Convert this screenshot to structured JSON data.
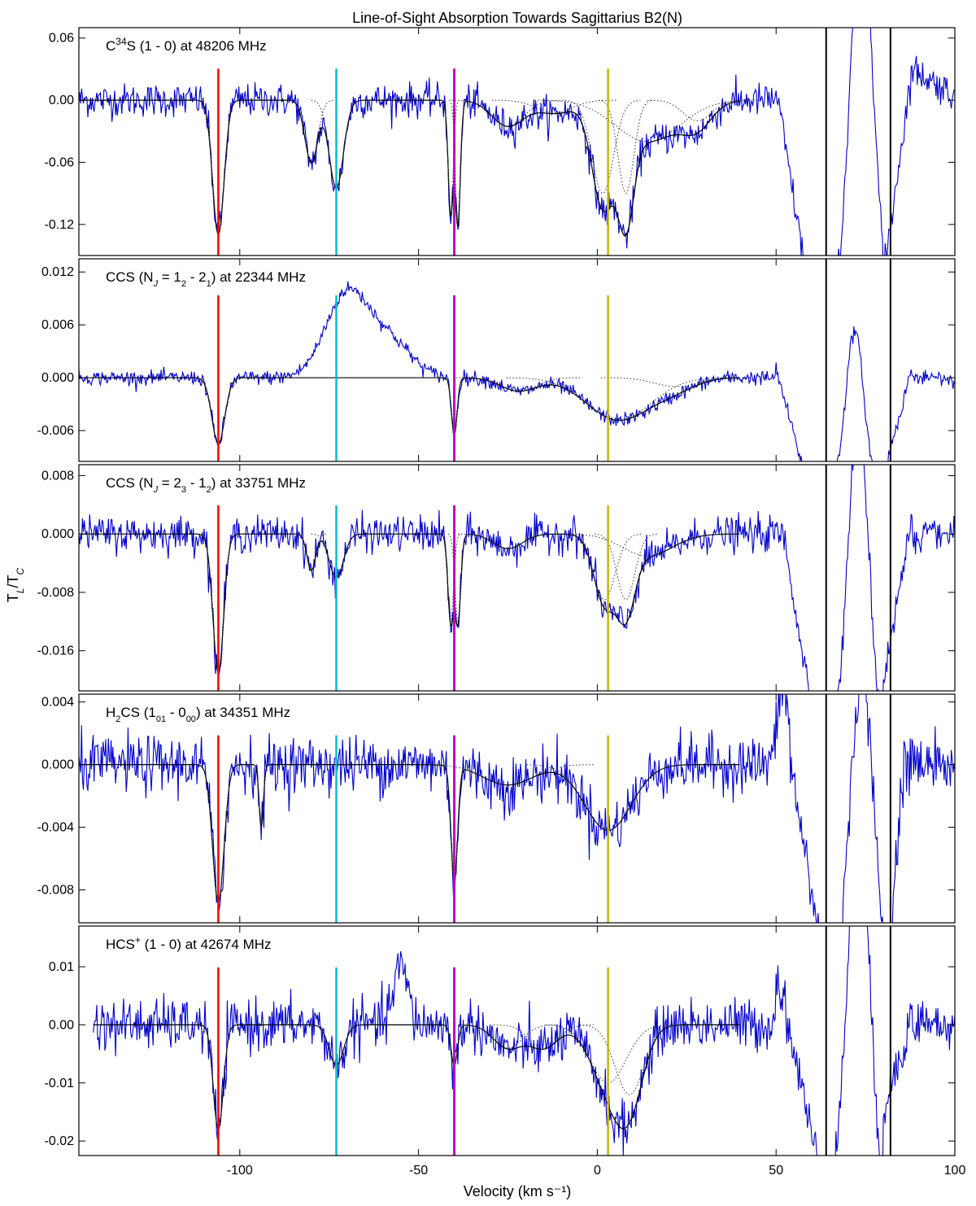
{
  "chart_data": {
    "type": "line",
    "title": "Line-of-Sight Absorption Towards Sagittarius B2(N)",
    "xlabel": "Velocity (km s⁻¹)",
    "ylabel": "T_L/T_C",
    "xlim": [
      -145,
      100
    ],
    "xticks": [
      -100,
      -50,
      0,
      50,
      100
    ],
    "xtick_labels": [
      "-100",
      "-50",
      "0",
      "50",
      "100"
    ],
    "grid": false,
    "markers": [
      {
        "velocity": -106,
        "color": "#ff0000"
      },
      {
        "velocity": -73,
        "color": "#00bfc8"
      },
      {
        "velocity": -40,
        "color": "#bf00bf"
      },
      {
        "velocity": 3,
        "color": "#c8b400"
      },
      {
        "velocity": 64,
        "color": "#000000"
      },
      {
        "velocity": 82,
        "color": "#000000"
      }
    ],
    "panels": [
      {
        "label_main": "C",
        "label_sup": "34",
        "label_rest": "S (1 - 0) at 48206 MHz",
        "ylim": [
          -0.15,
          0.07
        ],
        "yticks": [
          0.06,
          0.0,
          -0.06,
          -0.12
        ],
        "ytick_labels": [
          "0.06",
          "0.00",
          "-0.06",
          "-0.12"
        ],
        "data_start": -145,
        "noise": 0.008,
        "components": [
          {
            "center": -106,
            "depth": 0.13,
            "width": 1.6
          },
          {
            "center": -80,
            "depth": 0.06,
            "width": 1.8
          },
          {
            "center": -73,
            "depth": 0.085,
            "width": 2.0
          },
          {
            "center": -41,
            "depth": 0.11,
            "width": 0.7
          },
          {
            "center": -39,
            "depth": 0.12,
            "width": 0.7
          },
          {
            "center": -25,
            "depth": 0.025,
            "width": 4.5
          },
          {
            "center": -12,
            "depth": 0.012,
            "width": 5.0
          },
          {
            "center": 1.5,
            "depth": 0.09,
            "width": 3.0
          },
          {
            "center": 8,
            "depth": 0.09,
            "width": 2.2
          },
          {
            "center": 14,
            "depth": 0.04,
            "width": 9.0
          },
          {
            "center": 28,
            "depth": 0.02,
            "width": 4.0
          }
        ],
        "emission": [
          {
            "center": 74,
            "height": 0.24,
            "width": 3.0
          }
        ],
        "segments": [
          {
            "x0": 50,
            "y0": 0.01,
            "x1": 58,
            "y1": -0.16
          },
          {
            "x0": 62,
            "y0": -0.18,
            "x1": 68,
            "y1": -0.15
          },
          {
            "x0": 80,
            "y0": -0.17,
            "x1": 88,
            "y1": 0.03
          },
          {
            "x0": 88,
            "y0": 0.03,
            "x1": 100,
            "y1": 0.005
          }
        ]
      },
      {
        "label_main": "CCS (N",
        "label_sub": "J",
        "label_rest": " = 1",
        "label_sub2": "2",
        "label_rest2": " - 2",
        "label_sub3": "1",
        "label_rest3": ") at 22344 MHz",
        "ylim": [
          -0.0095,
          0.0135
        ],
        "yticks": [
          0.012,
          0.006,
          0.0,
          -0.006
        ],
        "ytick_labels": [
          "0.012",
          "0.006",
          "0.000",
          "-0.006"
        ],
        "data_start": -145,
        "noise": 0.0004,
        "components": [
          {
            "center": -106,
            "depth": 0.0075,
            "width": 1.8
          },
          {
            "center": -40,
            "depth": 0.0065,
            "width": 0.8
          },
          {
            "center": -22,
            "depth": 0.0015,
            "width": 5.0
          },
          {
            "center": 6,
            "depth": 0.0048,
            "width": 9.0
          },
          {
            "center": 22,
            "depth": 0.001,
            "width": 6.0
          }
        ],
        "emission": [
          {
            "center": -70,
            "height": 0.0095,
            "width": 6.0
          },
          {
            "center": -58,
            "height": 0.004,
            "width": 6.0
          },
          {
            "center": 72,
            "height": 0.011,
            "width": 2.5
          }
        ],
        "segments": [
          {
            "x0": 50,
            "y0": 0.001,
            "x1": 58,
            "y1": -0.011
          },
          {
            "x0": 80,
            "y0": -0.011,
            "x1": 88,
            "y1": 0.001
          }
        ]
      },
      {
        "label_main": "CCS (N",
        "label_sub": "J",
        "label_rest": " = 2",
        "label_sub2": "3",
        "label_rest2": " - 1",
        "label_sub3": "2",
        "label_rest3": ") at 33751 MHz",
        "ylim": [
          -0.0215,
          0.0095
        ],
        "yticks": [
          0.008,
          0.0,
          -0.008,
          -0.016
        ],
        "ytick_labels": [
          "0.008",
          "0.000",
          "-0.008",
          "-0.016"
        ],
        "data_start": -145,
        "noise": 0.0012,
        "components": [
          {
            "center": -106,
            "depth": 0.019,
            "width": 1.5
          },
          {
            "center": -80,
            "depth": 0.005,
            "width": 1.2
          },
          {
            "center": -73,
            "depth": 0.006,
            "width": 2.0
          },
          {
            "center": -41,
            "depth": 0.012,
            "width": 0.8
          },
          {
            "center": -39,
            "depth": 0.012,
            "width": 0.8
          },
          {
            "center": -25,
            "depth": 0.002,
            "width": 4.0
          },
          {
            "center": 2,
            "depth": 0.009,
            "width": 3.0
          },
          {
            "center": 8,
            "depth": 0.009,
            "width": 2.5
          },
          {
            "center": 14,
            "depth": 0.003,
            "width": 7.0
          }
        ],
        "emission": [
          {
            "center": 73,
            "height": 0.028,
            "width": 2.8
          }
        ],
        "segments": [
          {
            "x0": 52,
            "y0": 0.0,
            "x1": 60,
            "y1": -0.024
          },
          {
            "x0": 80,
            "y0": -0.02,
            "x1": 88,
            "y1": 0.002
          }
        ]
      },
      {
        "label_main": "H",
        "label_sub": "2",
        "label_rest": "CS (1",
        "label_sub2": "01",
        "label_rest2": " - 0",
        "label_sub3": "00",
        "label_rest3": ") at 34351 MHz",
        "ylim": [
          -0.0101,
          0.0045
        ],
        "yticks": [
          0.004,
          0.0,
          -0.004,
          -0.008
        ],
        "ytick_labels": [
          "0.004",
          "0.000",
          "-0.004",
          "-0.008"
        ],
        "data_start": -145,
        "noise": 0.0009,
        "components": [
          {
            "center": -106,
            "depth": 0.0088,
            "width": 1.6
          },
          {
            "center": -94,
            "depth": 0.004,
            "width": 0.6
          },
          {
            "center": -40,
            "depth": 0.0075,
            "width": 0.9
          },
          {
            "center": -25,
            "depth": 0.0013,
            "width": 7.0
          },
          {
            "center": 3,
            "depth": 0.0042,
            "width": 6.5
          }
        ],
        "emission": [
          {
            "center": 52,
            "height": 0.005,
            "width": 1.5
          },
          {
            "center": 74,
            "height": 0.012,
            "width": 3.0
          }
        ],
        "segments": [
          {
            "x0": 54,
            "y0": 0.0,
            "x1": 62,
            "y1": -0.011
          },
          {
            "x0": 82,
            "y0": -0.011,
            "x1": 86,
            "y1": 0.0015
          }
        ]
      },
      {
        "label_main": "HCS",
        "label_sup": "+",
        "label_rest": " (1 - 0) at 42674 MHz",
        "ylim": [
          -0.0225,
          0.017
        ],
        "yticks": [
          0.01,
          0.0,
          -0.01,
          -0.02
        ],
        "ytick_labels": [
          "0.01",
          "0.00",
          "-0.01",
          "-0.02"
        ],
        "data_start": -141,
        "noise": 0.0022,
        "components": [
          {
            "center": -106,
            "depth": 0.018,
            "width": 1.4
          },
          {
            "center": -73,
            "depth": 0.007,
            "width": 2.0
          },
          {
            "center": -40,
            "depth": 0.007,
            "width": 0.9
          },
          {
            "center": -25,
            "depth": 0.004,
            "width": 4.0
          },
          {
            "center": -15,
            "depth": 0.004,
            "width": 4.0
          },
          {
            "center": 3,
            "depth": 0.01,
            "width": 5.0
          },
          {
            "center": 9,
            "depth": 0.012,
            "width": 4.0
          }
        ],
        "emission": [
          {
            "center": -55,
            "height": 0.01,
            "width": 2.0
          },
          {
            "center": 73,
            "height": 0.04,
            "width": 3.0
          }
        ],
        "segments": [
          {
            "x0": 50,
            "y0": 0.01,
            "x1": 62,
            "y1": -0.025
          },
          {
            "x0": 80,
            "y0": -0.015,
            "x1": 88,
            "y1": 0.002
          }
        ]
      }
    ]
  }
}
